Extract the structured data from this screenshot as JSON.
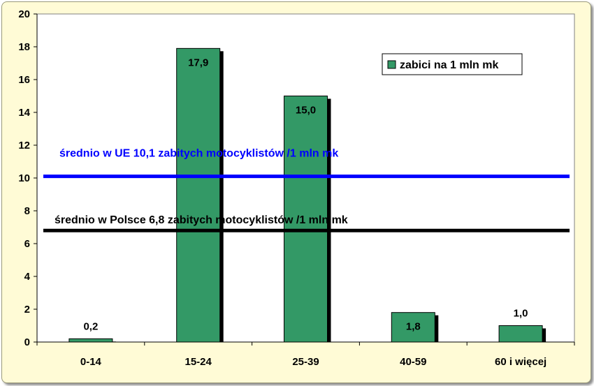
{
  "chart_data": {
    "type": "bar",
    "categories": [
      "0-14",
      "15-24",
      "25-39",
      "40-59",
      "60 i więcej"
    ],
    "series": [
      {
        "name": "zabici na 1 mln mk",
        "values": [
          0.2,
          17.9,
          15.0,
          1.8,
          1.0
        ],
        "value_labels": [
          "0,2",
          "17,9",
          "15,0",
          "1,8",
          "1,0"
        ],
        "color": "#339966"
      }
    ],
    "reference_lines": [
      {
        "value": 10.1,
        "label": "średnio w UE 10,1 zabitych motocyklistów /1 mln mk",
        "color": "#0000ff"
      },
      {
        "value": 6.8,
        "label": "średnio w Polsce 6,8 zabitych motocyklistów /1 mln mk",
        "color": "#000000"
      }
    ],
    "y_ticks": [
      0,
      2,
      4,
      6,
      8,
      10,
      12,
      14,
      16,
      18,
      20
    ],
    "ylim": [
      0,
      20
    ],
    "grid": false,
    "legend_position": "top-right",
    "plot_background": "#ffffff",
    "frame_background": "#fffbd6"
  }
}
